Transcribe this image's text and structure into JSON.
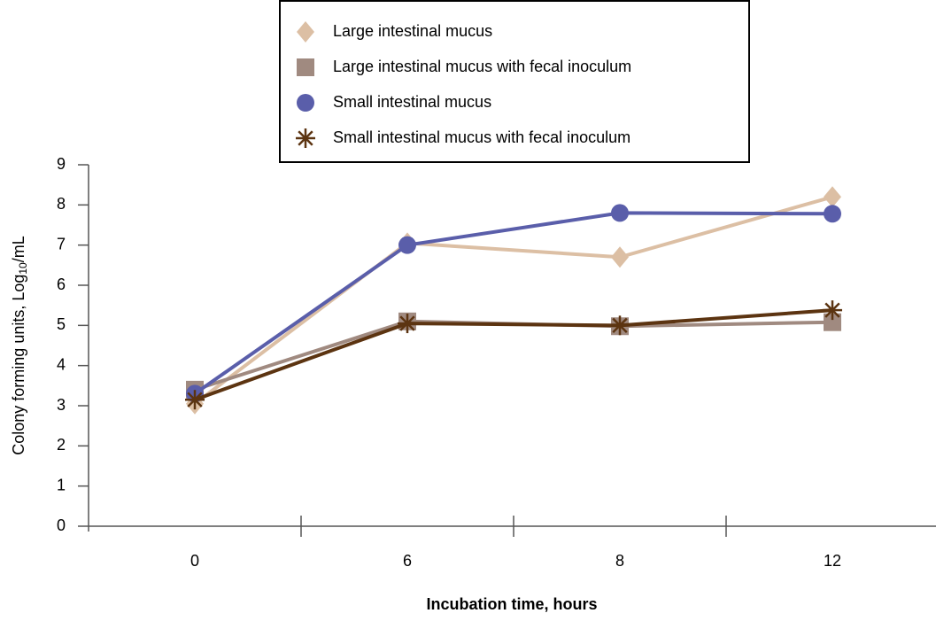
{
  "chart_data": {
    "type": "line",
    "xlabel": "Incubation time, hours",
    "ylabel": {
      "text": "Colony forming units, Log",
      "subscript": "10",
      "suffix": "/mL"
    },
    "categories": [
      "0",
      "6",
      "8",
      "12"
    ],
    "ylim": [
      0,
      9
    ],
    "yticks": [
      0,
      1,
      2,
      3,
      4,
      5,
      6,
      7,
      8,
      9
    ],
    "legend": "top",
    "series": [
      {
        "name": "Large intestinal mucus",
        "color": "#dcbfa4",
        "marker": "diamond",
        "values": [
          3.05,
          7.05,
          6.7,
          8.2
        ]
      },
      {
        "name": "Large intestinal mucus with fecal inoculum",
        "color": "#a08a80",
        "marker": "square",
        "values": [
          3.4,
          5.1,
          4.98,
          5.08
        ]
      },
      {
        "name": "Small intestinal mucus",
        "color": "#5a5eaa",
        "marker": "circle",
        "values": [
          3.3,
          7.0,
          7.8,
          7.78
        ]
      },
      {
        "name": "Small intestinal mucus with fecal inoculum",
        "color": "#5c3411",
        "marker": "asterisk",
        "values": [
          3.15,
          5.05,
          5.0,
          5.38
        ]
      }
    ]
  }
}
